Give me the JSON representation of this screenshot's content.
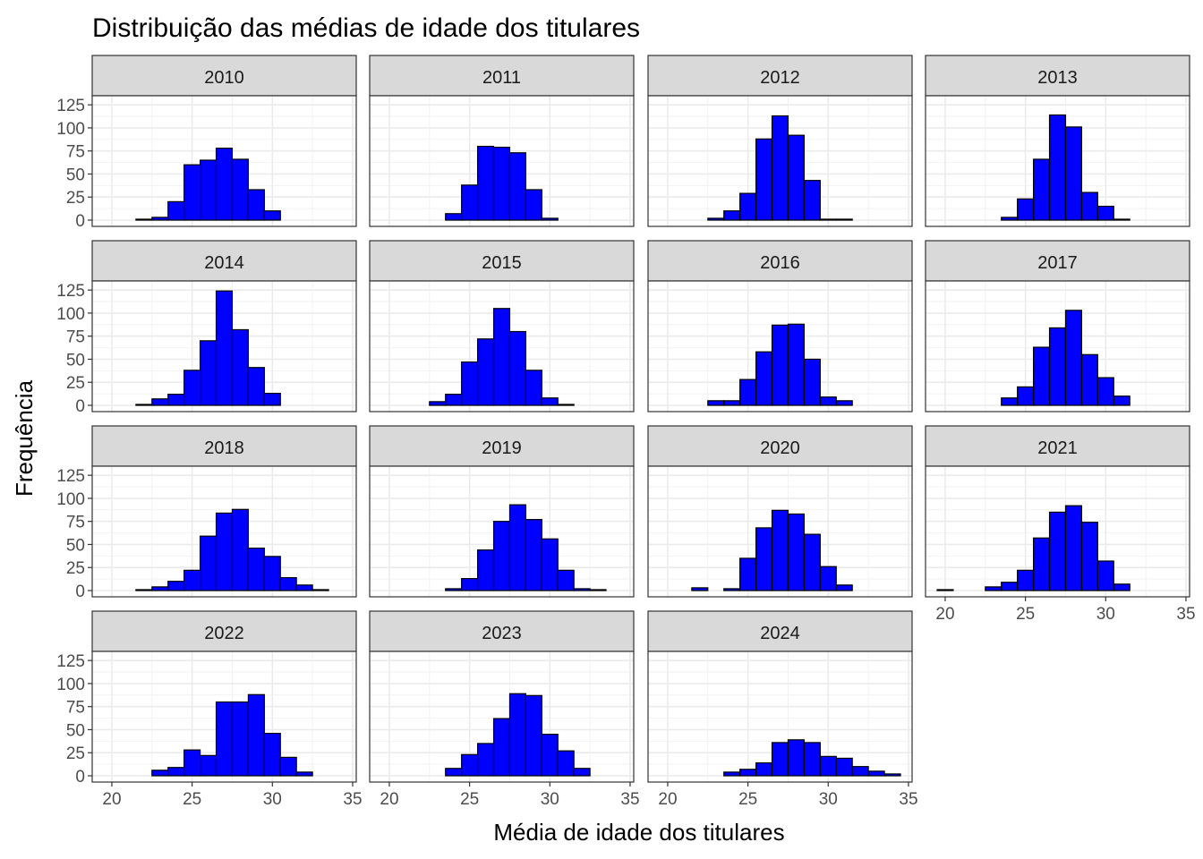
{
  "chart_data": {
    "type": "bar",
    "title": "Distribuição das médias de idade dos titulares",
    "xlabel": "Média de idade dos titulares",
    "ylabel": "Frequência",
    "xlim": [
      19.5,
      34.5
    ],
    "ylim": [
      0,
      130
    ],
    "xticks": [
      20,
      25,
      30,
      35
    ],
    "yticks": [
      0,
      25,
      50,
      75,
      100,
      125
    ],
    "bin_starts": [
      19.5,
      20.5,
      21.5,
      22.5,
      23.5,
      24.5,
      25.5,
      26.5,
      27.5,
      28.5,
      29.5,
      30.5,
      31.5,
      32.5,
      33.5
    ],
    "bin_width": 1,
    "bar_fill": "#0000ff",
    "bar_outline": "#000000",
    "strip_fill": "#d9d9d9",
    "grid": true,
    "layout": {
      "columns": 4
    },
    "facets": [
      {
        "label": "2010",
        "values": [
          0,
          0,
          1,
          3,
          20,
          60,
          65,
          78,
          66,
          33,
          10,
          0,
          0,
          0,
          0
        ]
      },
      {
        "label": "2011",
        "values": [
          0,
          0,
          0,
          0,
          7,
          38,
          80,
          79,
          73,
          33,
          2,
          0,
          0,
          0,
          0
        ]
      },
      {
        "label": "2012",
        "values": [
          0,
          0,
          0,
          2,
          10,
          29,
          88,
          113,
          92,
          43,
          1,
          1,
          0,
          0,
          0
        ]
      },
      {
        "label": "2013",
        "values": [
          0,
          0,
          0,
          0,
          3,
          23,
          66,
          114,
          101,
          30,
          15,
          1,
          0,
          0,
          0
        ]
      },
      {
        "label": "2014",
        "values": [
          0,
          0,
          1,
          7,
          12,
          38,
          70,
          124,
          82,
          41,
          13,
          0,
          0,
          0,
          0
        ]
      },
      {
        "label": "2015",
        "values": [
          0,
          0,
          0,
          4,
          12,
          47,
          72,
          105,
          80,
          38,
          8,
          1,
          0,
          0,
          0
        ]
      },
      {
        "label": "2016",
        "values": [
          0,
          0,
          0,
          5,
          5,
          28,
          58,
          87,
          88,
          50,
          9,
          5,
          0,
          0,
          0
        ]
      },
      {
        "label": "2017",
        "values": [
          0,
          0,
          0,
          0,
          8,
          20,
          63,
          84,
          103,
          55,
          30,
          10,
          0,
          0,
          0
        ]
      },
      {
        "label": "2018",
        "values": [
          0,
          0,
          1,
          4,
          10,
          22,
          59,
          84,
          88,
          46,
          37,
          14,
          6,
          1,
          0
        ]
      },
      {
        "label": "2019",
        "values": [
          0,
          0,
          0,
          0,
          2,
          13,
          44,
          75,
          93,
          77,
          56,
          22,
          2,
          1,
          0
        ]
      },
      {
        "label": "2020",
        "values": [
          0,
          0,
          3,
          0,
          2,
          35,
          68,
          87,
          83,
          61,
          26,
          6,
          0,
          0,
          0
        ]
      },
      {
        "label": "2021",
        "values": [
          1,
          0,
          0,
          4,
          9,
          22,
          57,
          85,
          92,
          74,
          32,
          7,
          0,
          0,
          0
        ]
      },
      {
        "label": "2022",
        "values": [
          0,
          0,
          0,
          6,
          9,
          28,
          22,
          80,
          80,
          88,
          46,
          20,
          4,
          0,
          0
        ]
      },
      {
        "label": "2023",
        "values": [
          0,
          0,
          0,
          0,
          8,
          23,
          35,
          62,
          89,
          87,
          45,
          27,
          8,
          0,
          0
        ]
      },
      {
        "label": "2024",
        "values": [
          0,
          0,
          0,
          0,
          4,
          7,
          14,
          36,
          39,
          36,
          21,
          19,
          10,
          5,
          2
        ]
      }
    ]
  }
}
